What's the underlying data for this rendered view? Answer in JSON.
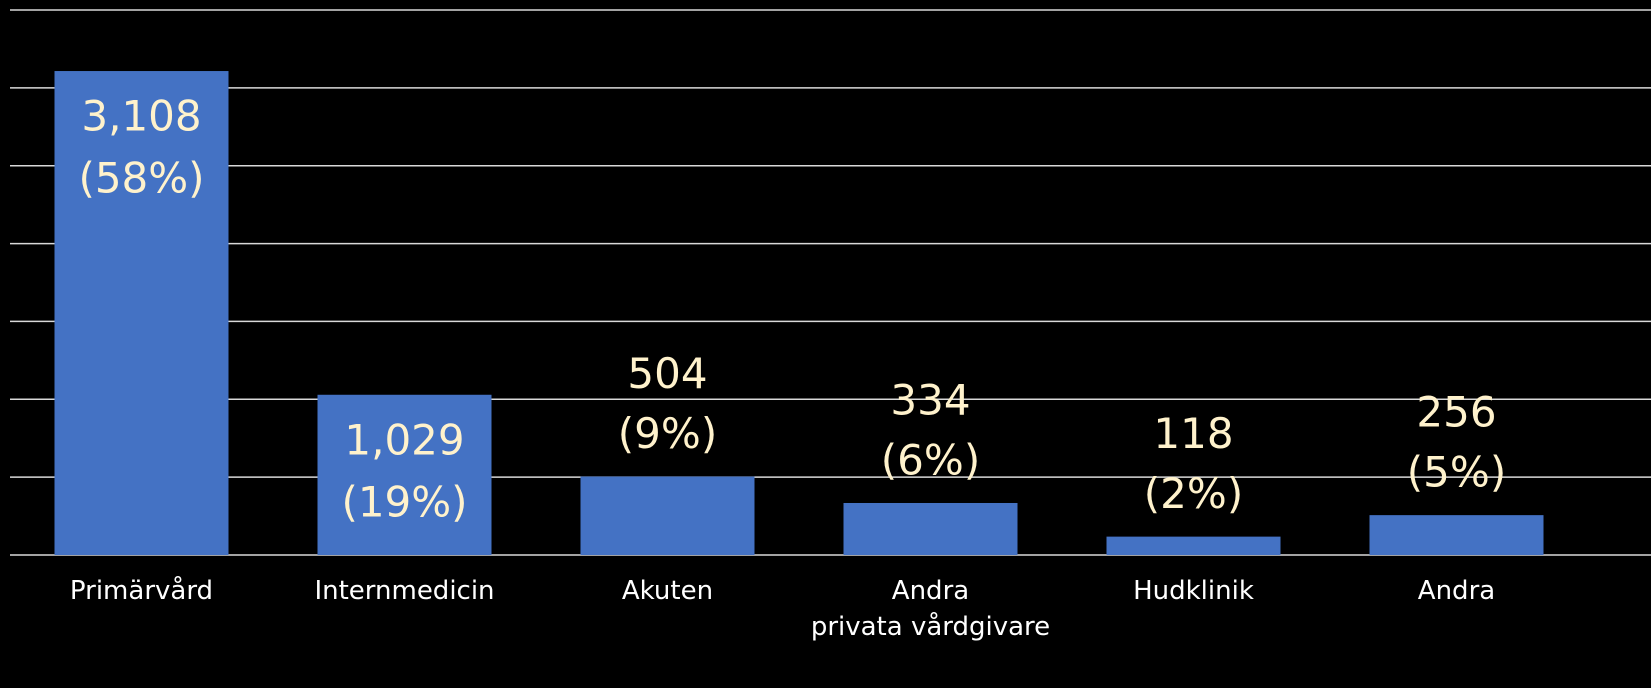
{
  "chart_data": {
    "type": "bar",
    "categories": [
      [
        "Primärvård"
      ],
      [
        "Internmedicin"
      ],
      [
        "Akuten"
      ],
      [
        "Andra",
        "privata vårdgivare"
      ],
      [
        "Hudklinik"
      ],
      [
        "Andra"
      ]
    ],
    "values": [
      3108,
      1029,
      504,
      334,
      118,
      256
    ],
    "value_labels": [
      "3,108",
      "1,029",
      "504",
      "334",
      "118",
      "256"
    ],
    "share_labels": [
      "(58%)",
      "(19%)",
      "(9%)",
      "(6%)",
      "(2%)",
      "(5%)"
    ],
    "color": "#4472c4",
    "ylim": [
      0,
      3500
    ],
    "yticks": [
      0,
      500,
      1000,
      1500,
      2000,
      2500,
      3000,
      3500
    ],
    "grid": true
  }
}
